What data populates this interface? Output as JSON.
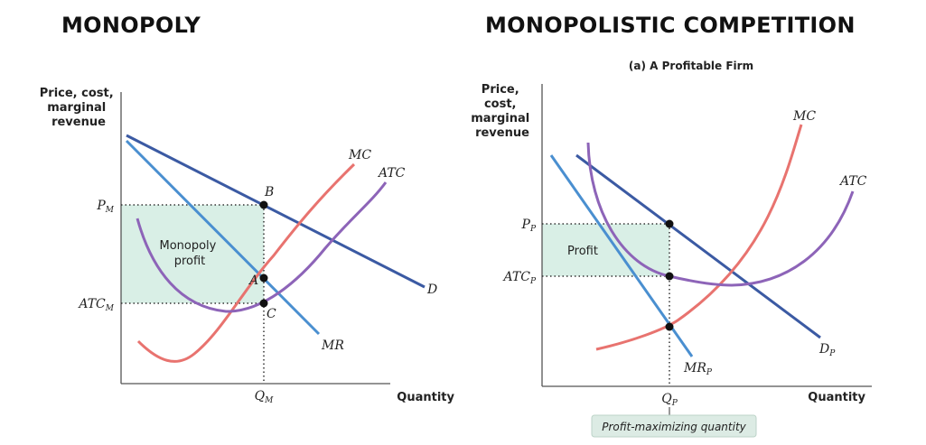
{
  "colors": {
    "demand": "#3b5aa3",
    "marginal_revenue": "#4a8fd0",
    "marginal_cost": "#e8736f",
    "atc": "#8d64b8",
    "profit_area": "#d9efe6",
    "callout_bg": "#dcebe4"
  },
  "left_panel": {
    "title": "MONOPOLY",
    "y_axis_label": [
      "Price, cost,",
      "marginal",
      "revenue"
    ],
    "x_axis_label": "Quantity",
    "curves": {
      "mc": "MC",
      "atc": "ATC",
      "d": "D",
      "mr": "MR"
    },
    "points": {
      "b": "B",
      "a": "A",
      "c": "C"
    },
    "price_label": {
      "main": "P",
      "sub": "M"
    },
    "atc_label": {
      "main": "ATC",
      "sub": "M"
    },
    "quantity_label": {
      "main": "Q",
      "sub": "M"
    },
    "area_label": [
      "Monopoly",
      "profit"
    ]
  },
  "right_panel": {
    "title": "MONOPOLISTIC COMPETITION",
    "subtitle": "(a) A Profitable Firm",
    "y_axis_label": [
      "Price,",
      "cost,",
      "marginal",
      "revenue"
    ],
    "x_axis_label": "Quantity",
    "curves": {
      "mc": "MC",
      "atc": "ATC",
      "d": {
        "main": "D",
        "sub": "P"
      },
      "mr": {
        "main": "MR",
        "sub": "P"
      }
    },
    "price_label": {
      "main": "P",
      "sub": "P"
    },
    "atc_label": {
      "main": "ATC",
      "sub": "P"
    },
    "quantity_label": {
      "main": "Q",
      "sub": "P"
    },
    "area_label": "Profit",
    "callout": "Profit-maximizing quantity"
  }
}
